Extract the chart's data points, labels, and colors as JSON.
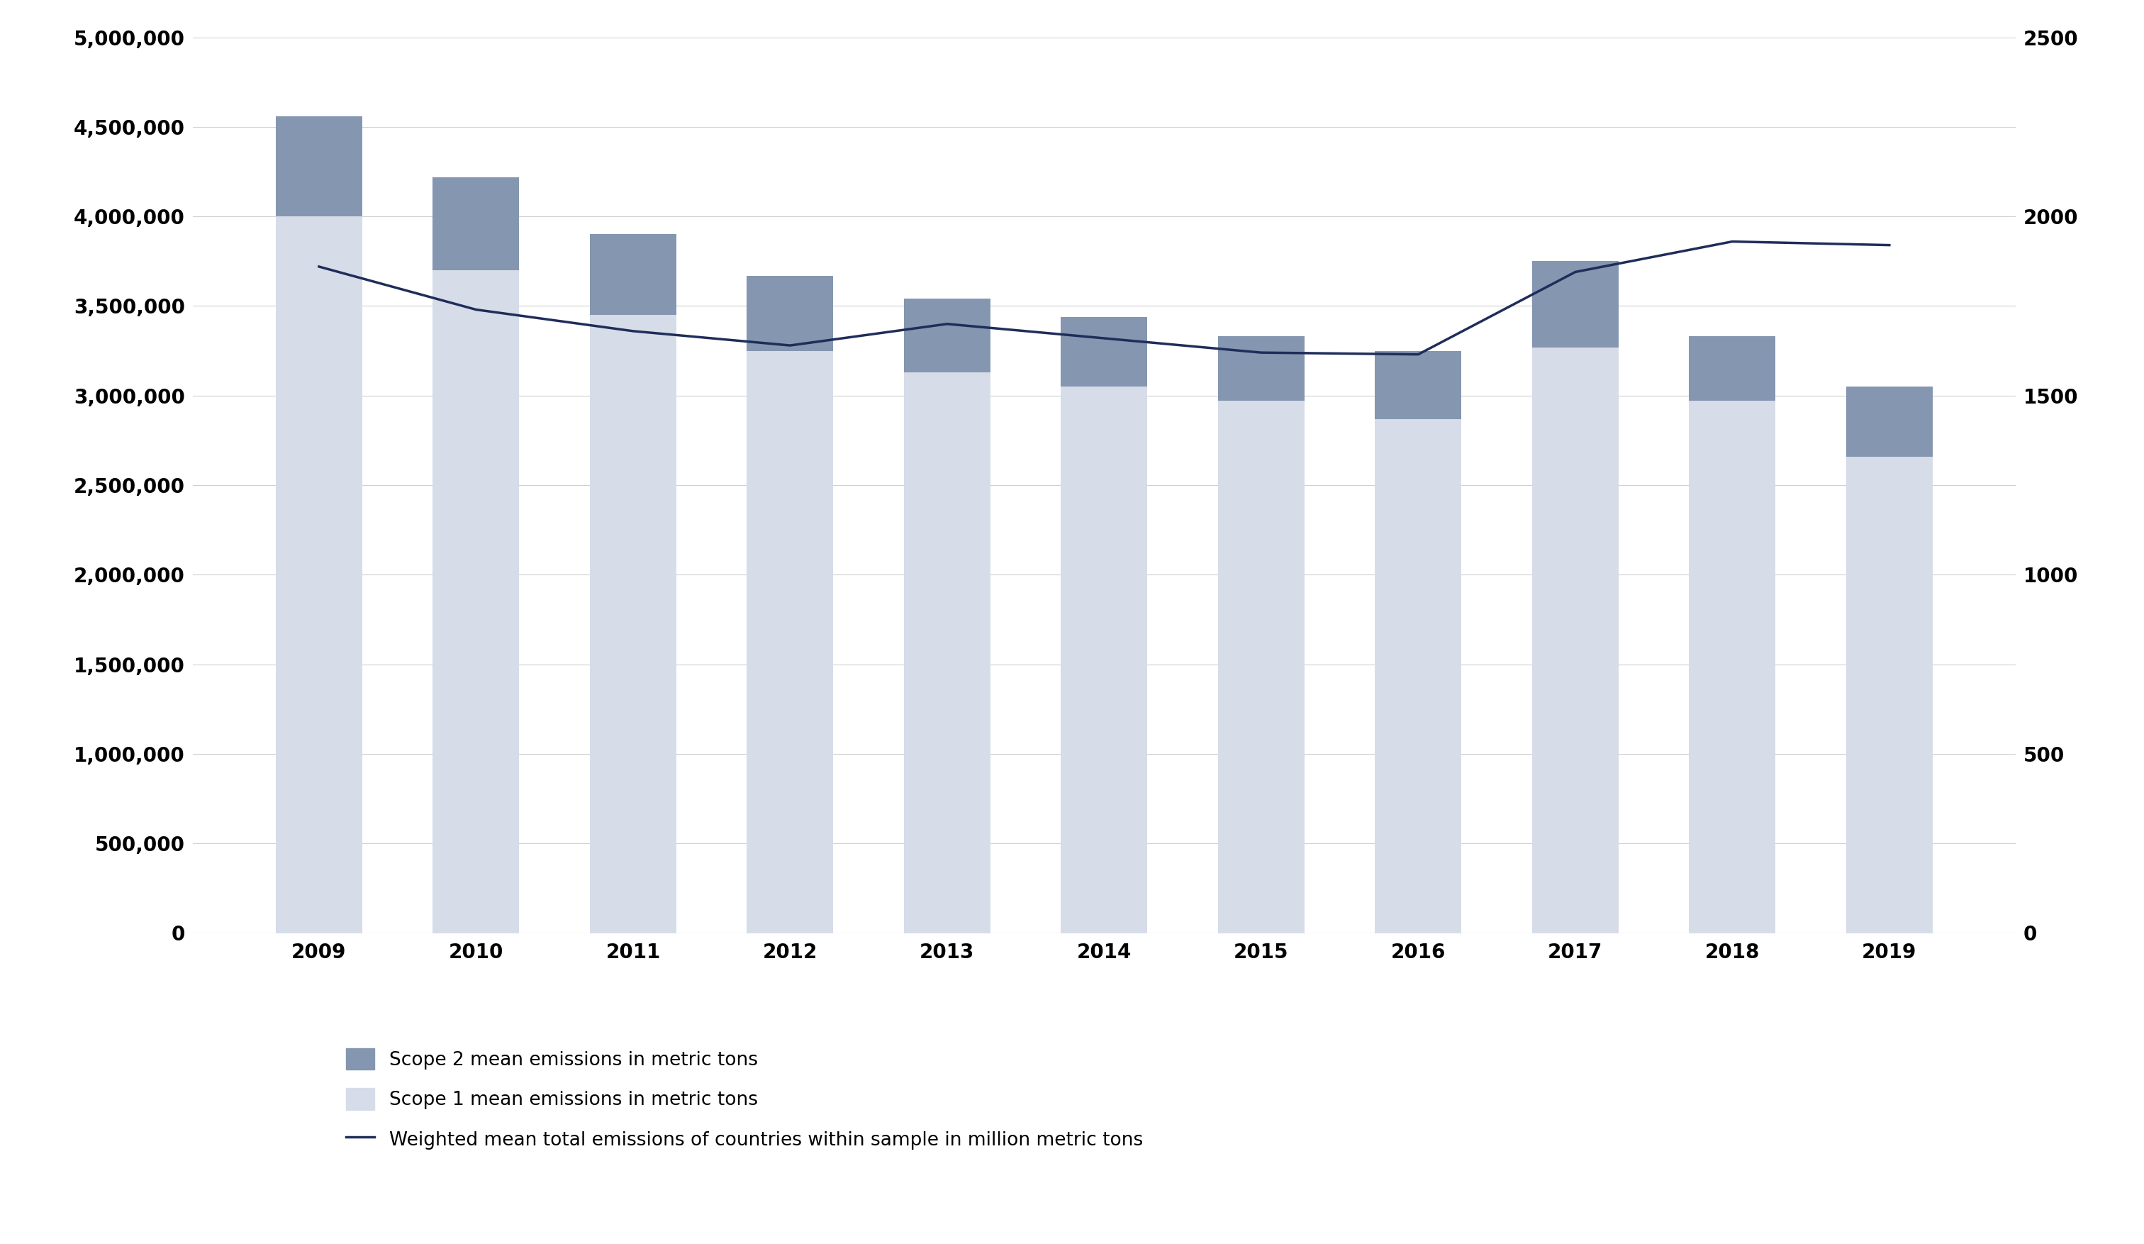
{
  "years": [
    2009,
    2010,
    2011,
    2012,
    2013,
    2014,
    2015,
    2016,
    2017,
    2018,
    2019
  ],
  "scope1_values": [
    4000000,
    3700000,
    3450000,
    3250000,
    3130000,
    3050000,
    2970000,
    2870000,
    3270000,
    2970000,
    2660000
  ],
  "scope2_values": [
    560000,
    520000,
    450000,
    420000,
    410000,
    390000,
    360000,
    380000,
    480000,
    360000,
    390000
  ],
  "line_values": [
    1860,
    1740,
    1680,
    1640,
    1700,
    1660,
    1620,
    1615,
    1845,
    1930,
    1920
  ],
  "scope1_color": "#d6dce8",
  "scope2_color": "#8496b0",
  "line_color": "#1f2d5a",
  "background_color": "#ffffff",
  "ylim_left": [
    0,
    5000000
  ],
  "ylim_right": [
    0,
    2500
  ],
  "yticks_left": [
    0,
    500000,
    1000000,
    1500000,
    2000000,
    2500000,
    3000000,
    3500000,
    4000000,
    4500000,
    5000000
  ],
  "yticks_right": [
    0,
    500,
    1000,
    1500,
    2000,
    2500
  ],
  "legend_labels": [
    "Scope 2 mean emissions in metric tons",
    "Scope 1 mean emissions in metric tons",
    "Weighted mean total emissions of countries within sample in million metric tons"
  ],
  "grid_color": "#d0d0d0",
  "tick_fontsize": 20,
  "legend_fontsize": 19
}
